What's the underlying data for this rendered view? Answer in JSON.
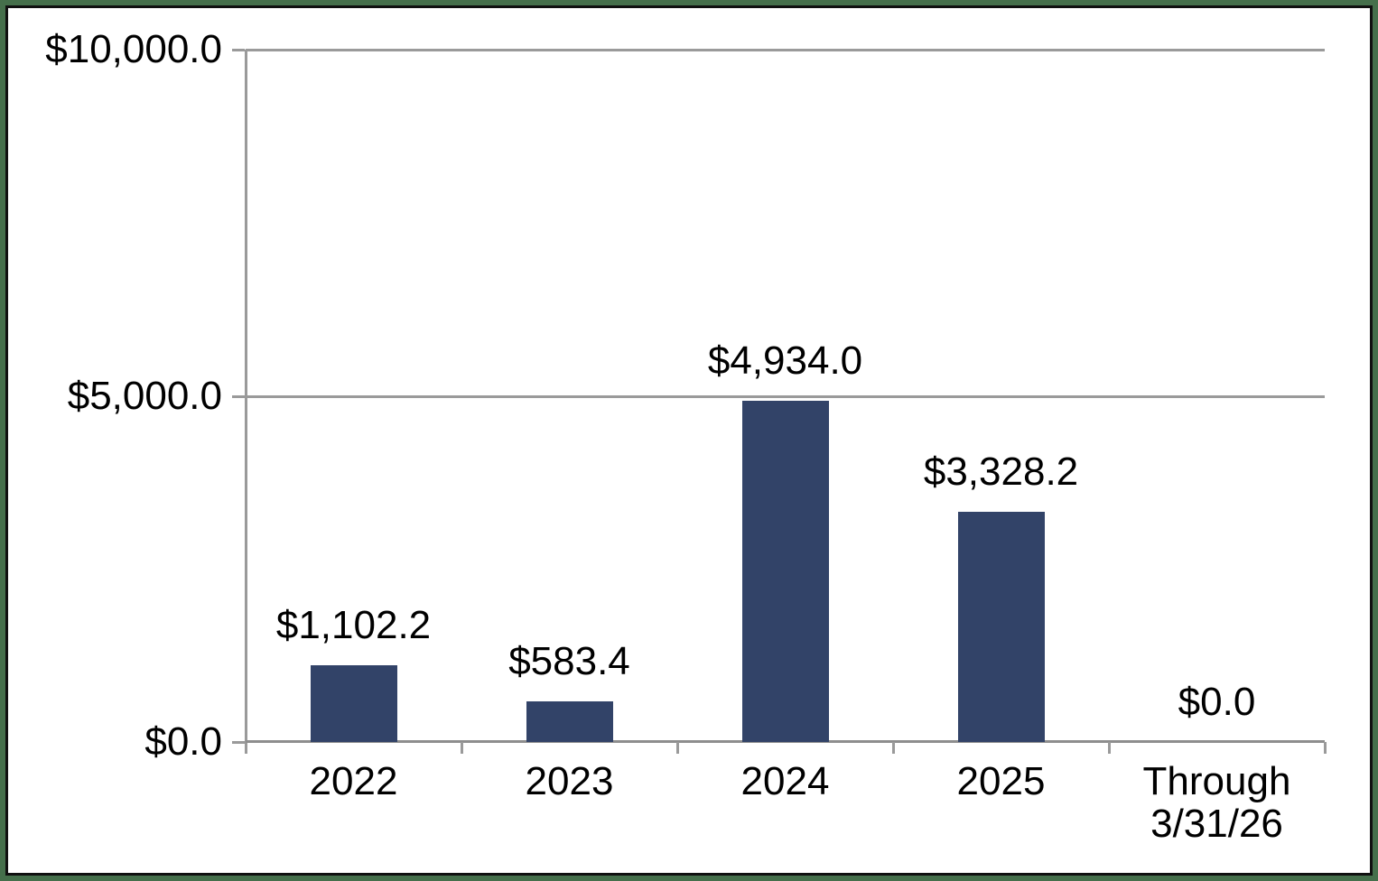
{
  "frame": {
    "outer_border_color": "#456F4B",
    "inner_border_color": "#101010",
    "background_color": "#ffffff"
  },
  "chart_data": {
    "type": "bar",
    "title": "",
    "xlabel": "",
    "ylabel": "",
    "categories": [
      "2022",
      "2023",
      "2024",
      "2025",
      "Through\n3/31/26"
    ],
    "values": [
      1102.2,
      583.4,
      4934.0,
      3328.2,
      0.0
    ],
    "data_labels": [
      "$1,102.2",
      "$583.4",
      "$4,934.0",
      "$3,328.2",
      "$0.0"
    ],
    "y_axis": {
      "min": 0,
      "max": 10000,
      "ticks": [
        {
          "value": 0,
          "label": "$0.0"
        },
        {
          "value": 5000,
          "label": "$5,000.0"
        },
        {
          "value": 10000,
          "label": "$10,000.0"
        }
      ]
    },
    "legend": "none",
    "grid": true,
    "bar_color": "#324368",
    "axis_color": "#9a9a9a",
    "label_color": "#000000"
  }
}
